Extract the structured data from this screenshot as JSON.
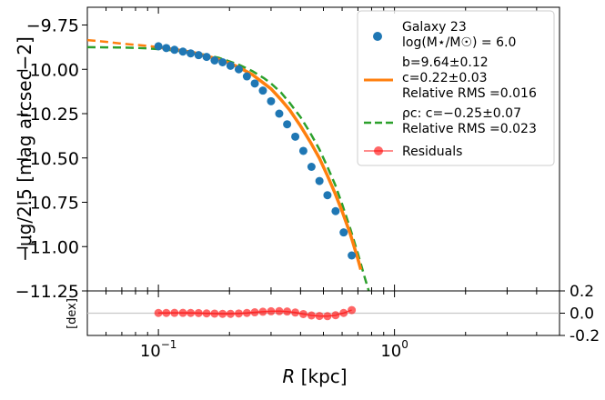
{
  "chart_data": [
    {
      "type": "line",
      "panel": "main",
      "xlabel": "R [kpc]",
      "xlabel_italic": "R",
      "xlabel_unit": " [kpc]",
      "ylabel": "−μg/2.5 [mag arcsec−2]",
      "x_scale": "log",
      "xlim": [
        0.05,
        5.0
      ],
      "ylim": [
        -11.25,
        -9.65
      ],
      "y_ticks": [
        -9.75,
        -10.0,
        -10.25,
        -10.5,
        -10.75,
        -11.0,
        -11.25
      ],
      "y_tick_labels": [
        "−9.75",
        "−10.00",
        "−10.25",
        "−10.50",
        "−10.75",
        "−11.00",
        "−11.25"
      ],
      "grid": false,
      "legend_position": "top-right",
      "legend": [
        {
          "line1": "Galaxy 23",
          "line2": "log(M⋆/M☉) = 6.0"
        },
        {
          "line1": "b=9.64±0.12",
          "line2": "c=0.22±0.03",
          "line3": "Relative RMS =0.016"
        },
        {
          "line1": "ρc: c=−0.25±0.07",
          "line2": "Relative RMS =0.023"
        },
        {
          "line1": "Residuals"
        }
      ],
      "series": [
        {
          "name": "Galaxy 23",
          "style": "scatter",
          "color": "#1f77b4",
          "x": [
            0.1,
            0.108,
            0.117,
            0.127,
            0.137,
            0.148,
            0.16,
            0.173,
            0.187,
            0.202,
            0.219,
            0.237,
            0.256,
            0.277,
            0.3,
            0.325,
            0.351,
            0.38,
            0.411,
            0.445,
            0.481,
            0.52,
            0.563,
            0.609,
            0.659
          ],
          "y": [
            -9.87,
            -9.88,
            -9.89,
            -9.9,
            -9.91,
            -9.92,
            -9.93,
            -9.95,
            -9.96,
            -9.98,
            -10.0,
            -10.04,
            -10.08,
            -10.12,
            -10.18,
            -10.25,
            -10.31,
            -10.38,
            -10.46,
            -10.55,
            -10.63,
            -10.71,
            -10.8,
            -10.92,
            -11.05
          ]
        },
        {
          "style": "solid",
          "color": "#ff7f0e",
          "x": [
            0.05,
            0.06,
            0.07,
            0.08,
            0.09,
            0.1,
            0.12,
            0.14,
            0.16,
            0.18,
            0.2,
            0.22,
            0.25,
            0.28,
            0.3,
            0.33,
            0.36,
            0.4,
            0.44,
            0.48,
            0.52,
            0.56,
            0.6,
            0.65,
            0.7,
            0.72
          ],
          "y": [
            -9.835,
            -9.845,
            -9.855,
            -9.862,
            -9.868,
            -9.875,
            -9.89,
            -9.905,
            -9.925,
            -9.945,
            -9.965,
            -9.99,
            -10.03,
            -10.08,
            -10.11,
            -10.17,
            -10.23,
            -10.32,
            -10.41,
            -10.5,
            -10.6,
            -10.7,
            -10.8,
            -10.93,
            -11.07,
            -11.13
          ],
          "dashed_before": 0.1
        },
        {
          "style": "dashed",
          "color": "#2ca02c",
          "x": [
            0.05,
            0.06,
            0.07,
            0.08,
            0.09,
            0.1,
            0.12,
            0.14,
            0.16,
            0.18,
            0.2,
            0.22,
            0.25,
            0.28,
            0.3,
            0.33,
            0.36,
            0.4,
            0.44,
            0.48,
            0.52,
            0.56,
            0.6,
            0.65,
            0.7,
            0.75,
            0.79
          ],
          "y": [
            -9.875,
            -9.876,
            -9.877,
            -9.879,
            -9.882,
            -9.886,
            -9.895,
            -9.905,
            -9.92,
            -9.935,
            -9.955,
            -9.975,
            -10.01,
            -10.05,
            -10.08,
            -10.13,
            -10.19,
            -10.27,
            -10.36,
            -10.45,
            -10.55,
            -10.65,
            -10.76,
            -10.9,
            -11.04,
            -11.18,
            -11.28
          ]
        }
      ]
    },
    {
      "type": "line",
      "panel": "residuals",
      "ylabel": "[dex]",
      "x_scale": "log",
      "xlim": [
        0.05,
        5.0
      ],
      "ylim": [
        -0.2,
        0.2
      ],
      "y_ticks": [
        0.2,
        0.0,
        -0.2
      ],
      "y_tick_labels": [
        "0.2",
        "0.0",
        "-0.2"
      ],
      "x_ticks": [
        0.1,
        1.0
      ],
      "x_tick_labels": [
        "10",
        "10"
      ],
      "x_tick_exponents": [
        "−1",
        "0"
      ],
      "reference_line": 0.0,
      "series": [
        {
          "name": "Residuals",
          "style": "line-markers",
          "color": "#ff0000",
          "x": [
            0.1,
            0.108,
            0.117,
            0.127,
            0.137,
            0.148,
            0.16,
            0.173,
            0.187,
            0.202,
            0.219,
            0.237,
            0.256,
            0.277,
            0.3,
            0.325,
            0.351,
            0.38,
            0.411,
            0.445,
            0.481,
            0.52,
            0.563,
            0.609,
            0.659
          ],
          "y": [
            0.002,
            0.002,
            0.003,
            0.003,
            0.002,
            0.001,
            -0.002,
            -0.004,
            -0.006,
            -0.006,
            -0.003,
            0.002,
            0.008,
            0.013,
            0.017,
            0.018,
            0.015,
            0.006,
            -0.008,
            -0.02,
            -0.025,
            -0.027,
            -0.018,
            0.002,
            0.028
          ]
        }
      ]
    }
  ]
}
